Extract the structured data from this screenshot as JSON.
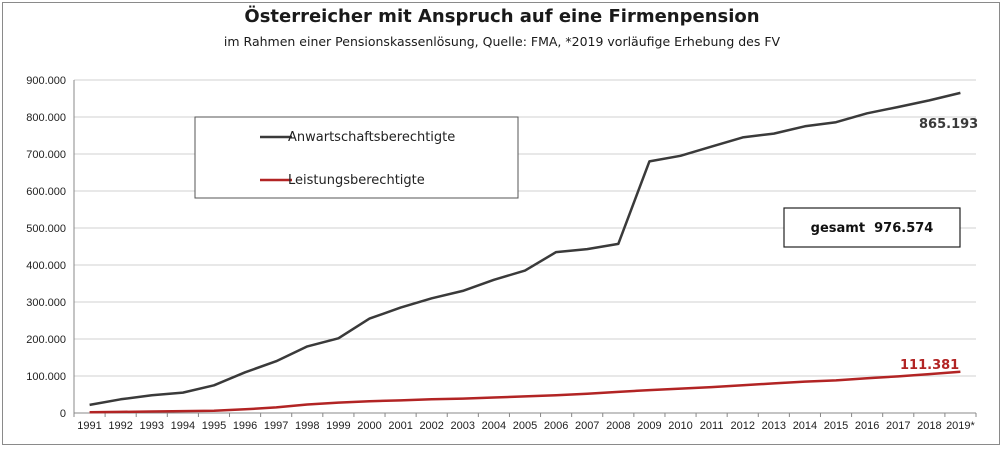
{
  "chart_data": {
    "type": "line",
    "title": "Österreicher mit Anspruch auf eine Firmenpension",
    "subtitle": "im Rahmen einer Pensionskassenlösung, Quelle: FMA, *2019 vorläufige Erhebung des FV",
    "categories": [
      "1991",
      "1992",
      "1993",
      "1994",
      "1995",
      "1996",
      "1997",
      "1998",
      "1999",
      "2000",
      "2001",
      "2002",
      "2003",
      "2004",
      "2005",
      "2006",
      "2007",
      "2008",
      "2009",
      "2010",
      "2011",
      "2012",
      "2013",
      "2014",
      "2015",
      "2016",
      "2017",
      "2018",
      "2019*"
    ],
    "ylim": [
      0,
      900000
    ],
    "yticks": [
      0,
      100000,
      200000,
      300000,
      400000,
      500000,
      600000,
      700000,
      800000,
      900000
    ],
    "ytick_labels": [
      "0",
      "100.000",
      "200.000",
      "300.000",
      "400.000",
      "500.000",
      "600.000",
      "700.000",
      "800.000",
      "900.000"
    ],
    "grid": "horizontal",
    "legend_position": "top-left",
    "series": [
      {
        "name": "Anwartschaftsberechtigte",
        "color": "#3a3a3a",
        "values": [
          22000,
          37000,
          48000,
          55000,
          75000,
          110000,
          140000,
          180000,
          202000,
          255000,
          285000,
          310000,
          330000,
          360000,
          385000,
          435000,
          443000,
          457000,
          680000,
          695000,
          720000,
          745000,
          755000,
          775000,
          786000,
          810000,
          827000,
          845000,
          865193
        ]
      },
      {
        "name": "Leistungsberechtigte",
        "color": "#b22424",
        "values": [
          2000,
          3000,
          4000,
          5000,
          6000,
          10000,
          15000,
          23000,
          28000,
          32000,
          34000,
          37000,
          39000,
          42000,
          45000,
          48000,
          52000,
          57000,
          62000,
          66000,
          70000,
          75000,
          80000,
          85000,
          88000,
          94000,
          99000,
          105000,
          111381
        ]
      }
    ],
    "annotations": {
      "end_label_1": "865.193",
      "end_label_2": "111.381",
      "total_box": "gesamt  976.574"
    }
  }
}
